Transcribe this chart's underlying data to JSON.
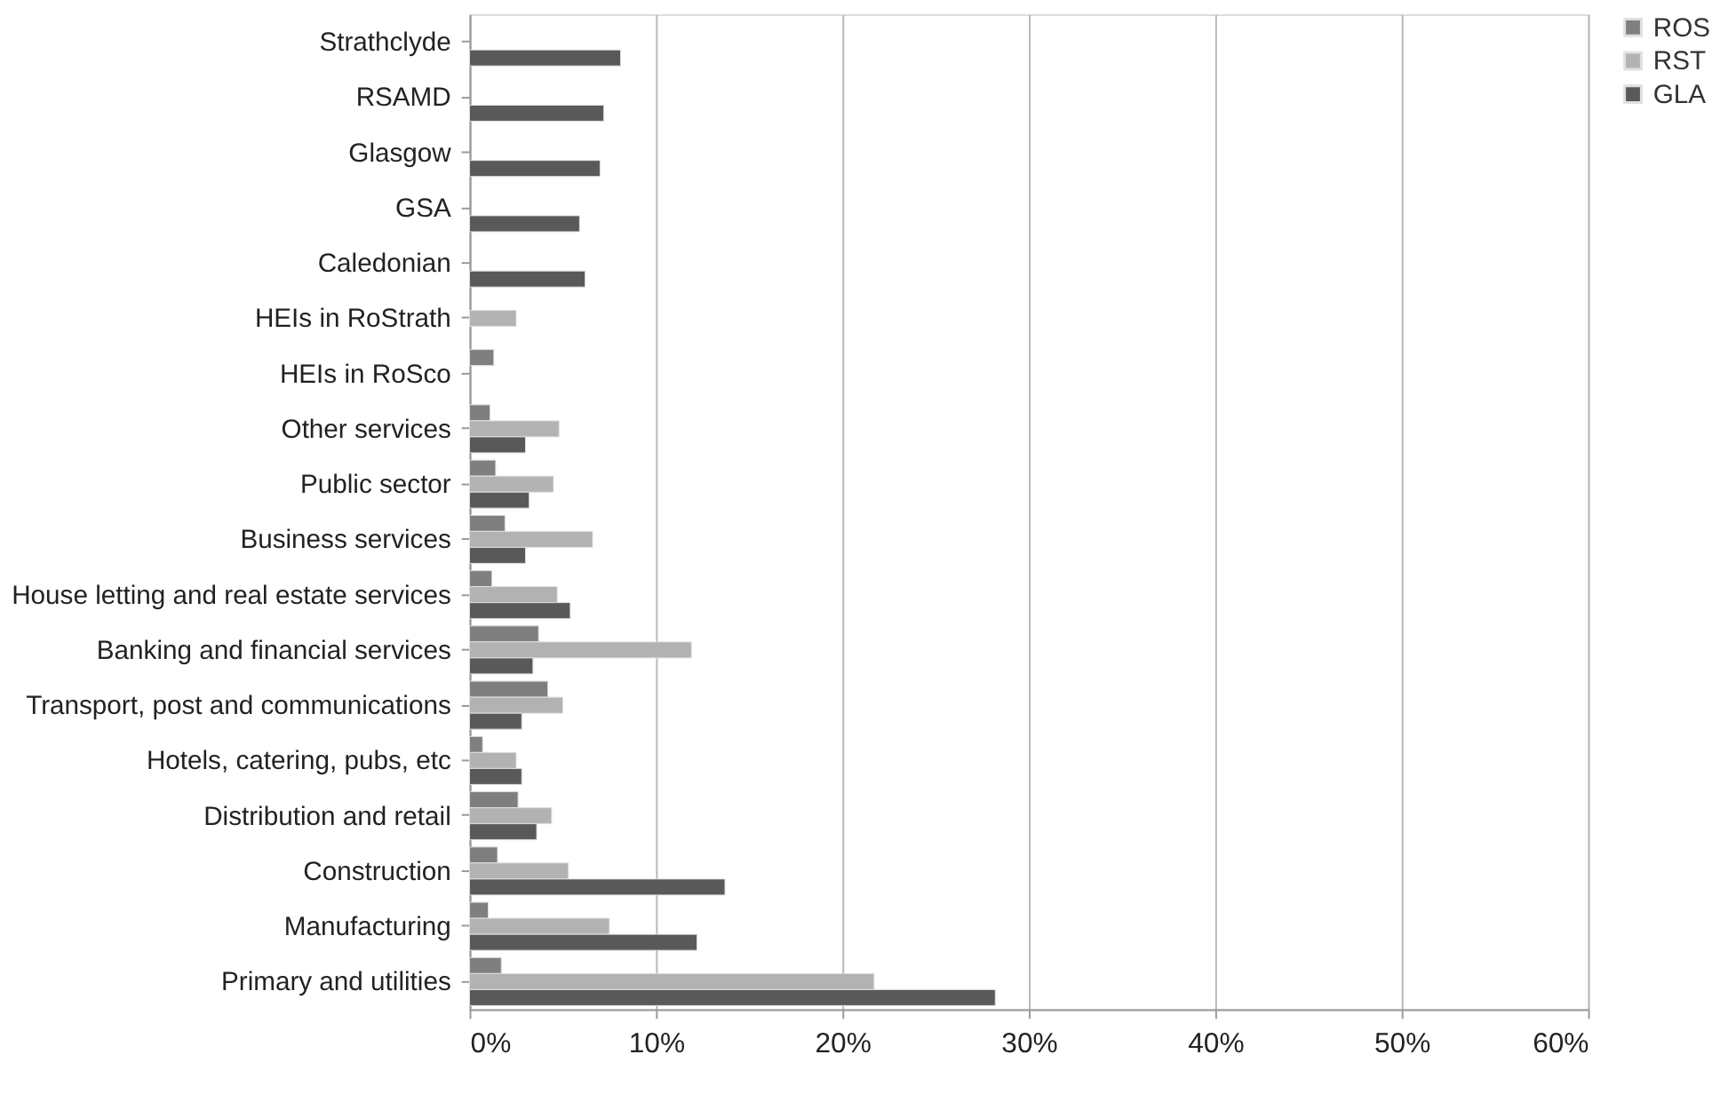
{
  "chart_data": {
    "type": "bar",
    "orientation": "horizontal",
    "categories": [
      "Strathclyde",
      "RSAMD",
      "Glasgow",
      "GSA",
      "Caledonian",
      "HEIs in RoStrath",
      "HEIs in RoSco",
      "Other services",
      "Public sector",
      "Business services",
      "House letting and real estate services",
      "Banking and financial services",
      "Transport, post and communications",
      "Hotels, catering, pubs, etc",
      "Distribution and retail",
      "Construction",
      "Manufacturing",
      "Primary and utilities"
    ],
    "series": [
      {
        "name": "ROS",
        "color": "#7f7f7f",
        "values": [
          null,
          null,
          null,
          null,
          null,
          null,
          1.3,
          1.1,
          1.4,
          1.9,
          1.2,
          3.7,
          4.2,
          0.7,
          2.6,
          1.5,
          1.0,
          1.7
        ]
      },
      {
        "name": "RST",
        "color": "#b2b2b2",
        "values": [
          null,
          null,
          null,
          null,
          null,
          2.5,
          null,
          4.8,
          4.5,
          6.6,
          4.7,
          11.9,
          5.0,
          2.5,
          4.4,
          5.3,
          7.5,
          21.7
        ]
      },
      {
        "name": "GLA",
        "color": "#595959",
        "values": [
          8.1,
          7.2,
          7.0,
          5.9,
          6.2,
          null,
          null,
          3.0,
          3.2,
          3.0,
          5.4,
          3.4,
          2.8,
          2.8,
          3.6,
          13.7,
          12.2,
          28.2
        ]
      }
    ],
    "xlim": [
      0,
      60
    ],
    "xticks": [
      {
        "value": 0,
        "label": "0%"
      },
      {
        "value": 10,
        "label": "10%"
      },
      {
        "value": 20,
        "label": "20%"
      },
      {
        "value": 30,
        "label": "30%"
      },
      {
        "value": 40,
        "label": "40%"
      },
      {
        "value": 50,
        "label": "50%"
      },
      {
        "value": 60,
        "label": "60%"
      }
    ],
    "grid": "x",
    "legend": "right"
  }
}
